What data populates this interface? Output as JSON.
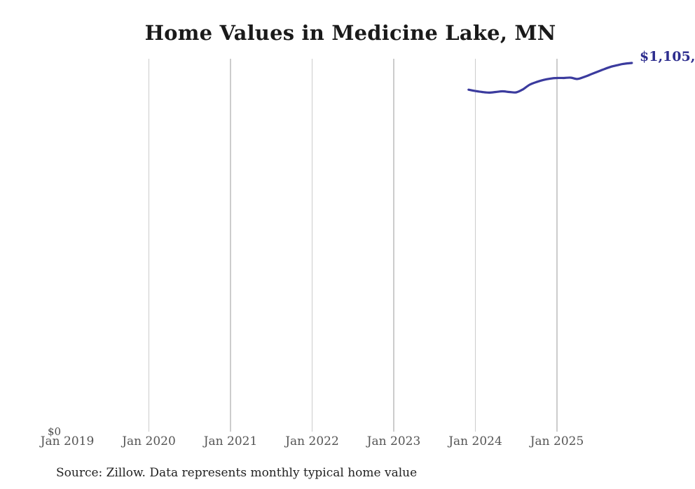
{
  "page": {
    "background": "#ffffff"
  },
  "header": {
    "title": "Home Values in Medicine Lake, MN"
  },
  "footer": {
    "source_note": "Source: Zillow. Data represents monthly typical home value"
  },
  "labels": {
    "y_zero": "$0",
    "end_value": "$1,105,"
  },
  "colors": {
    "line": "#3b3b9e",
    "end_label": "#2d2d8e",
    "grid": "#cccccc",
    "axis_text": "#555555",
    "title_text": "#1a1a1a",
    "source_text": "#222222"
  },
  "chart_data": {
    "type": "line",
    "title": "Home Values in Medicine Lake, MN",
    "xlabel": "",
    "ylabel": "",
    "x_ticks": [
      "Jan 2019",
      "Jan 2020",
      "Jan 2021",
      "Jan 2022",
      "Jan 2023",
      "Jan 2024",
      "Jan 2025"
    ],
    "ylim": [
      0,
      1118000
    ],
    "grid": "vertical-only",
    "legend": "none",
    "annotation_last_point": "$1,105,",
    "series": [
      {
        "name": "Typical home value",
        "x": [
          "Dec 2023",
          "Jan 2024",
          "Feb 2024",
          "Mar 2024",
          "Apr 2024",
          "May 2024",
          "Jun 2024",
          "Jul 2024",
          "Aug 2024",
          "Sep 2024",
          "Oct 2024",
          "Nov 2024",
          "Dec 2024",
          "Jan 2025",
          "Feb 2025",
          "Mar 2025",
          "Apr 2025",
          "May 2025",
          "Jun 2025",
          "Jul 2025",
          "Aug 2025",
          "Sep 2025",
          "Oct 2025",
          "Nov 2025",
          "Dec 2025"
        ],
        "values": [
          1025000,
          1021000,
          1018000,
          1016000,
          1018000,
          1020000,
          1018000,
          1017000,
          1026000,
          1040000,
          1048000,
          1054000,
          1058000,
          1060000,
          1060000,
          1061000,
          1057000,
          1063000,
          1071000,
          1079000,
          1087000,
          1094000,
          1099000,
          1103000,
          1105000
        ]
      }
    ]
  }
}
